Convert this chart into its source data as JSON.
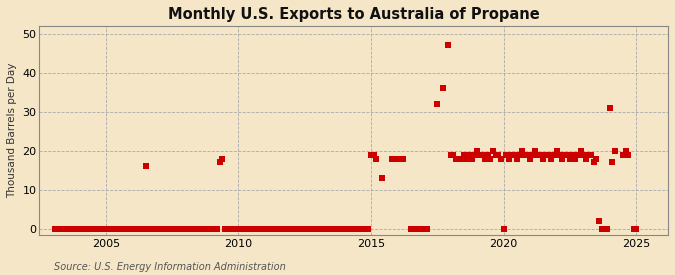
{
  "title": "Monthly U.S. Exports to Australia of Propane",
  "ylabel": "Thousand Barrels per Day",
  "source": "Source: U.S. Energy Information Administration",
  "background_color": "#f5e6c8",
  "plot_bg_color": "#f5e6c8",
  "marker_color": "#cc0000",
  "marker_size": 4,
  "xlim": [
    2002.5,
    2026.2
  ],
  "ylim": [
    -1.5,
    52
  ],
  "yticks": [
    0,
    10,
    20,
    30,
    40,
    50
  ],
  "xticks": [
    2005,
    2010,
    2015,
    2020,
    2025
  ],
  "data": [
    [
      2003.1,
      0
    ],
    [
      2003.2,
      0
    ],
    [
      2003.3,
      0
    ],
    [
      2003.4,
      0
    ],
    [
      2003.5,
      0
    ],
    [
      2003.6,
      0
    ],
    [
      2003.7,
      0
    ],
    [
      2003.8,
      0
    ],
    [
      2003.9,
      0
    ],
    [
      2004.0,
      0
    ],
    [
      2004.1,
      0
    ],
    [
      2004.2,
      0
    ],
    [
      2004.3,
      0
    ],
    [
      2004.4,
      0
    ],
    [
      2004.5,
      0
    ],
    [
      2004.6,
      0
    ],
    [
      2004.7,
      0
    ],
    [
      2004.8,
      0
    ],
    [
      2004.9,
      0
    ],
    [
      2005.0,
      0
    ],
    [
      2005.1,
      0
    ],
    [
      2005.2,
      0
    ],
    [
      2005.3,
      0
    ],
    [
      2005.4,
      0
    ],
    [
      2005.5,
      0
    ],
    [
      2005.6,
      0
    ],
    [
      2005.7,
      0
    ],
    [
      2005.8,
      0
    ],
    [
      2005.9,
      0
    ],
    [
      2006.0,
      0
    ],
    [
      2006.1,
      0
    ],
    [
      2006.2,
      0
    ],
    [
      2006.3,
      0
    ],
    [
      2006.4,
      0
    ],
    [
      2006.5,
      16
    ],
    [
      2006.6,
      0
    ],
    [
      2006.7,
      0
    ],
    [
      2006.8,
      0
    ],
    [
      2006.9,
      0
    ],
    [
      2007.0,
      0
    ],
    [
      2007.1,
      0
    ],
    [
      2007.2,
      0
    ],
    [
      2007.3,
      0
    ],
    [
      2007.4,
      0
    ],
    [
      2007.5,
      0
    ],
    [
      2007.6,
      0
    ],
    [
      2007.7,
      0
    ],
    [
      2007.8,
      0
    ],
    [
      2007.9,
      0
    ],
    [
      2008.0,
      0
    ],
    [
      2008.1,
      0
    ],
    [
      2008.2,
      0
    ],
    [
      2008.3,
      0
    ],
    [
      2008.4,
      0
    ],
    [
      2008.5,
      0
    ],
    [
      2008.6,
      0
    ],
    [
      2008.7,
      0
    ],
    [
      2008.8,
      0
    ],
    [
      2008.9,
      0
    ],
    [
      2009.0,
      0
    ],
    [
      2009.1,
      0
    ],
    [
      2009.2,
      0
    ],
    [
      2009.3,
      17
    ],
    [
      2009.4,
      18
    ],
    [
      2009.5,
      0
    ],
    [
      2009.6,
      0
    ],
    [
      2009.7,
      0
    ],
    [
      2009.8,
      0
    ],
    [
      2009.9,
      0
    ],
    [
      2010.0,
      0
    ],
    [
      2010.1,
      0
    ],
    [
      2010.2,
      0
    ],
    [
      2010.3,
      0
    ],
    [
      2010.4,
      0
    ],
    [
      2010.5,
      0
    ],
    [
      2010.6,
      0
    ],
    [
      2010.7,
      0
    ],
    [
      2010.8,
      0
    ],
    [
      2010.9,
      0
    ],
    [
      2011.0,
      0
    ],
    [
      2011.1,
      0
    ],
    [
      2011.2,
      0
    ],
    [
      2011.3,
      0
    ],
    [
      2011.4,
      0
    ],
    [
      2011.5,
      0
    ],
    [
      2011.6,
      0
    ],
    [
      2011.7,
      0
    ],
    [
      2011.8,
      0
    ],
    [
      2011.9,
      0
    ],
    [
      2012.0,
      0
    ],
    [
      2012.1,
      0
    ],
    [
      2012.2,
      0
    ],
    [
      2012.3,
      0
    ],
    [
      2012.4,
      0
    ],
    [
      2012.5,
      0
    ],
    [
      2012.6,
      0
    ],
    [
      2012.7,
      0
    ],
    [
      2012.8,
      0
    ],
    [
      2012.9,
      0
    ],
    [
      2013.0,
      0
    ],
    [
      2013.1,
      0
    ],
    [
      2013.2,
      0
    ],
    [
      2013.3,
      0
    ],
    [
      2013.4,
      0
    ],
    [
      2013.5,
      0
    ],
    [
      2013.6,
      0
    ],
    [
      2013.7,
      0
    ],
    [
      2013.8,
      0
    ],
    [
      2013.9,
      0
    ],
    [
      2014.0,
      0
    ],
    [
      2014.1,
      0
    ],
    [
      2014.2,
      0
    ],
    [
      2014.3,
      0
    ],
    [
      2014.4,
      0
    ],
    [
      2014.5,
      0
    ],
    [
      2014.6,
      0
    ],
    [
      2014.7,
      0
    ],
    [
      2014.8,
      0
    ],
    [
      2014.9,
      0
    ],
    [
      2015.0,
      19
    ],
    [
      2015.1,
      19
    ],
    [
      2015.2,
      18
    ],
    [
      2015.4,
      13
    ],
    [
      2015.8,
      18
    ],
    [
      2015.9,
      18
    ],
    [
      2016.0,
      18
    ],
    [
      2016.1,
      18
    ],
    [
      2016.2,
      18
    ],
    [
      2016.5,
      0
    ],
    [
      2016.6,
      0
    ],
    [
      2016.7,
      0
    ],
    [
      2016.8,
      0
    ],
    [
      2016.9,
      0
    ],
    [
      2017.0,
      0
    ],
    [
      2017.1,
      0
    ],
    [
      2017.5,
      32
    ],
    [
      2017.7,
      36
    ],
    [
      2017.9,
      47
    ],
    [
      2018.0,
      19
    ],
    [
      2018.1,
      19
    ],
    [
      2018.2,
      18
    ],
    [
      2018.3,
      18
    ],
    [
      2018.4,
      18
    ],
    [
      2018.5,
      19
    ],
    [
      2018.6,
      18
    ],
    [
      2018.7,
      19
    ],
    [
      2018.8,
      18
    ],
    [
      2018.9,
      19
    ],
    [
      2019.0,
      20
    ],
    [
      2019.1,
      19
    ],
    [
      2019.2,
      19
    ],
    [
      2019.3,
      18
    ],
    [
      2019.4,
      19
    ],
    [
      2019.5,
      18
    ],
    [
      2019.6,
      20
    ],
    [
      2019.7,
      19
    ],
    [
      2019.8,
      19
    ],
    [
      2019.9,
      18
    ],
    [
      2020.0,
      0
    ],
    [
      2020.1,
      19
    ],
    [
      2020.2,
      18
    ],
    [
      2020.3,
      19
    ],
    [
      2020.4,
      19
    ],
    [
      2020.5,
      18
    ],
    [
      2020.6,
      19
    ],
    [
      2020.7,
      20
    ],
    [
      2020.8,
      19
    ],
    [
      2020.9,
      19
    ],
    [
      2021.0,
      18
    ],
    [
      2021.1,
      19
    ],
    [
      2021.2,
      20
    ],
    [
      2021.3,
      19
    ],
    [
      2021.4,
      19
    ],
    [
      2021.5,
      18
    ],
    [
      2021.6,
      19
    ],
    [
      2021.7,
      19
    ],
    [
      2021.8,
      18
    ],
    [
      2021.9,
      19
    ],
    [
      2022.0,
      20
    ],
    [
      2022.1,
      19
    ],
    [
      2022.2,
      18
    ],
    [
      2022.3,
      19
    ],
    [
      2022.4,
      19
    ],
    [
      2022.5,
      18
    ],
    [
      2022.6,
      19
    ],
    [
      2022.7,
      18
    ],
    [
      2022.8,
      19
    ],
    [
      2022.9,
      20
    ],
    [
      2023.0,
      19
    ],
    [
      2023.1,
      18
    ],
    [
      2023.2,
      19
    ],
    [
      2023.3,
      19
    ],
    [
      2023.4,
      17
    ],
    [
      2023.5,
      18
    ],
    [
      2023.6,
      2
    ],
    [
      2023.7,
      0
    ],
    [
      2023.8,
      0
    ],
    [
      2023.9,
      0
    ],
    [
      2024.0,
      31
    ],
    [
      2024.1,
      17
    ],
    [
      2024.2,
      20
    ],
    [
      2024.5,
      19
    ],
    [
      2024.6,
      20
    ],
    [
      2024.7,
      19
    ],
    [
      2024.9,
      0
    ],
    [
      2025.0,
      0
    ]
  ]
}
